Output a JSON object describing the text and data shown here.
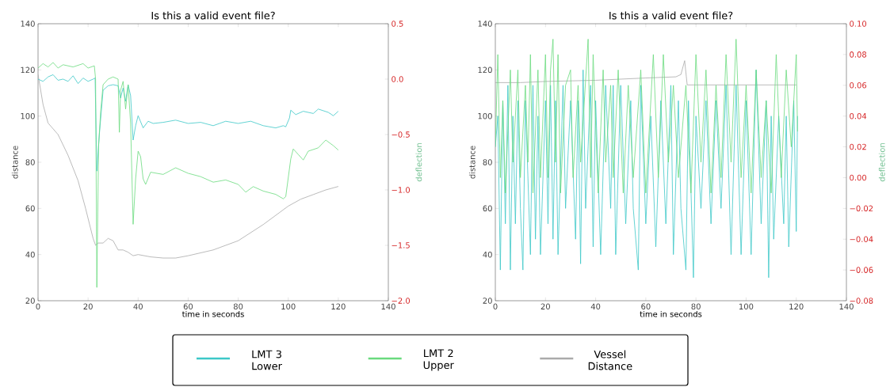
{
  "chart_data": [
    {
      "type": "line",
      "title": "Is this a valid event file?",
      "xlabel": "time in seconds",
      "ylabel": "distance",
      "y2label": "deflection",
      "xlim": [
        0,
        140
      ],
      "xticks": [
        0,
        20,
        40,
        60,
        80,
        100,
        120,
        140
      ],
      "ylim": [
        20,
        140
      ],
      "yticks": [
        20,
        40,
        60,
        80,
        100,
        120,
        140
      ],
      "y2lim": [
        -2.0,
        0.5
      ],
      "y2ticks": [
        {
          "value": -2.0,
          "label": "−2.0"
        },
        {
          "value": -1.5,
          "label": "−1.5"
        },
        {
          "value": -1.0,
          "label": "−1.0"
        },
        {
          "value": -0.5,
          "label": "−0.5"
        },
        {
          "value": 0.0,
          "label": "0.0"
        },
        {
          "value": 0.5,
          "label": "0.5"
        }
      ],
      "legend": "bottom",
      "series": [
        {
          "name": "LMT 3 Lower",
          "color": "#3cc8c8",
          "axis": "y2",
          "x": [
            0,
            2,
            4,
            6,
            8,
            10,
            12,
            14,
            16,
            18,
            20,
            22,
            22.8,
            23.5,
            24.5,
            26,
            28,
            30,
            32,
            33,
            34,
            35,
            36,
            37,
            38,
            39,
            40,
            42,
            44,
            46,
            50,
            55,
            60,
            65,
            70,
            75,
            80,
            85,
            90,
            95,
            98,
            99,
            100.5,
            101,
            103,
            106,
            110,
            112,
            116,
            118,
            120
          ],
          "values": [
            0.0,
            -0.02,
            0.02,
            0.04,
            -0.01,
            0.0,
            -0.02,
            0.03,
            -0.04,
            0.01,
            -0.02,
            0.0,
            0.01,
            -0.83,
            -0.5,
            -0.1,
            -0.06,
            -0.05,
            -0.06,
            -0.17,
            -0.08,
            -0.2,
            -0.05,
            -0.15,
            -0.55,
            -0.42,
            -0.33,
            -0.44,
            -0.38,
            -0.4,
            -0.39,
            -0.37,
            -0.4,
            -0.39,
            -0.42,
            -0.38,
            -0.4,
            -0.38,
            -0.42,
            -0.44,
            -0.42,
            -0.43,
            -0.35,
            -0.28,
            -0.32,
            -0.29,
            -0.31,
            -0.27,
            -0.3,
            -0.33,
            -0.29
          ]
        },
        {
          "name": "LMT 2 Upper",
          "color": "#6ada7e",
          "axis": "y2",
          "x": [
            0,
            2,
            4,
            6,
            8,
            10,
            14,
            18,
            20,
            22.5,
            23,
            23.5,
            24.2,
            25,
            26,
            28,
            30,
            32,
            32.5,
            33,
            34,
            35,
            36,
            37,
            38,
            39,
            40,
            41,
            42,
            43,
            45,
            50,
            55,
            60,
            65,
            70,
            75,
            80,
            83,
            86,
            90,
            95,
            98,
            99,
            101,
            102,
            104,
            106,
            108,
            112,
            115,
            118,
            120
          ],
          "values": [
            0.1,
            0.14,
            0.11,
            0.15,
            0.1,
            0.13,
            0.11,
            0.14,
            0.1,
            0.12,
            0.0,
            -1.88,
            -0.6,
            -0.3,
            -0.05,
            0.0,
            0.02,
            0.0,
            -0.48,
            -0.1,
            -0.02,
            -0.27,
            -0.05,
            -0.4,
            -1.31,
            -0.9,
            -0.65,
            -0.7,
            -0.9,
            -0.95,
            -0.84,
            -0.86,
            -0.8,
            -0.85,
            -0.88,
            -0.93,
            -0.91,
            -0.95,
            -1.02,
            -0.97,
            -1.01,
            -1.04,
            -1.08,
            -1.06,
            -0.72,
            -0.63,
            -0.68,
            -0.73,
            -0.65,
            -0.62,
            -0.55,
            -0.6,
            -0.64
          ]
        },
        {
          "name": "Vessel Distance",
          "color": "#aaaaaa",
          "x": [
            0,
            2,
            4,
            8,
            12,
            16,
            19,
            22,
            23,
            24,
            26,
            28,
            30,
            32,
            34,
            36,
            38,
            40,
            45,
            50,
            55,
            60,
            70,
            80,
            90,
            95,
            100,
            105,
            110,
            115,
            120
          ],
          "values": [
            118,
            105,
            97,
            92,
            83,
            72,
            60,
            47,
            44,
            45,
            45,
            47,
            46,
            42,
            42,
            41,
            39.5,
            40,
            39,
            38.5,
            38.5,
            39.5,
            42,
            46,
            53,
            57,
            61,
            64,
            66,
            68,
            69.5
          ]
        }
      ]
    },
    {
      "type": "line",
      "title": "Is this a valid event file?",
      "xlabel": "time in seconds",
      "ylabel": "distance",
      "y2label": "deflection",
      "xlim": [
        0,
        140
      ],
      "xticks": [
        0,
        20,
        40,
        60,
        80,
        100,
        120,
        140
      ],
      "ylim": [
        20,
        140
      ],
      "yticks": [
        20,
        40,
        60,
        80,
        100,
        120,
        140
      ],
      "y2lim": [
        -0.08,
        0.1
      ],
      "y2ticks": [
        {
          "value": -0.08,
          "label": "−0.08"
        },
        {
          "value": -0.06,
          "label": "−0.06"
        },
        {
          "value": -0.04,
          "label": "−0.04"
        },
        {
          "value": -0.02,
          "label": "−0.02"
        },
        {
          "value": 0.0,
          "label": "0.00"
        },
        {
          "value": 0.02,
          "label": "0.02"
        },
        {
          "value": 0.04,
          "label": "0.04"
        },
        {
          "value": 0.06,
          "label": "0.06"
        },
        {
          "value": 0.08,
          "label": "0.08"
        },
        {
          "value": 0.1,
          "label": "0.10"
        }
      ],
      "legend": "bottom",
      "series": [
        {
          "name": "LMT 3 Lower",
          "color": "#3cc8c8",
          "axis": "y2",
          "x": [
            0,
            1,
            2,
            3,
            4,
            5,
            6,
            7,
            8,
            9,
            10,
            11,
            12,
            14,
            15,
            16,
            17,
            18,
            20,
            21,
            22,
            23,
            24,
            25,
            27,
            28,
            30,
            32,
            33,
            34,
            35,
            36,
            38,
            39,
            40,
            42,
            44,
            46,
            47,
            48,
            50,
            52,
            54,
            55,
            57,
            58,
            60,
            62,
            64,
            66,
            68,
            70,
            71,
            73,
            74,
            76,
            77,
            79,
            80,
            82,
            84,
            86,
            88,
            90,
            92,
            94,
            96,
            98,
            100,
            102,
            104,
            106,
            108,
            109,
            110,
            111,
            113,
            115,
            116,
            117,
            119,
            120,
            120.5
          ],
          "values": [
            0.02,
            0.04,
            -0.06,
            0.05,
            -0.03,
            0.06,
            -0.06,
            0.04,
            -0.03,
            0.05,
            -0.02,
            -0.06,
            0.05,
            -0.05,
            0.06,
            -0.04,
            0.04,
            -0.05,
            0.05,
            -0.03,
            0.06,
            -0.04,
            0.05,
            -0.05,
            0.06,
            -0.02,
            0.05,
            -0.04,
            0.05,
            -0.056,
            0.07,
            -0.02,
            0.06,
            -0.045,
            0.05,
            -0.05,
            0.06,
            -0.02,
            0.06,
            -0.05,
            0.06,
            -0.03,
            0.05,
            -0.02,
            -0.06,
            0.06,
            -0.03,
            0.04,
            -0.045,
            0.05,
            -0.03,
            0.06,
            -0.05,
            0.05,
            -0.02,
            -0.06,
            0.05,
            -0.065,
            0.04,
            -0.02,
            0.05,
            -0.03,
            0.05,
            -0.02,
            0.06,
            -0.05,
            0.06,
            -0.05,
            0.05,
            -0.05,
            0.07,
            -0.03,
            0.05,
            -0.065,
            0.04,
            -0.04,
            0.04,
            -0.03,
            0.04,
            -0.045,
            0.05,
            -0.035,
            0.04
          ]
        },
        {
          "name": "LMT 2 Upper",
          "color": "#6ada7e",
          "axis": "y2",
          "x": [
            0,
            1,
            2,
            3,
            4,
            6,
            7,
            9,
            10,
            12,
            13,
            14,
            15,
            17,
            18,
            20,
            21,
            22,
            23,
            24,
            25,
            26,
            28,
            30,
            31,
            33,
            34,
            37,
            38,
            39,
            41,
            43,
            44,
            46,
            47,
            49,
            51,
            53,
            55,
            58,
            60,
            63,
            65,
            67,
            69,
            71,
            73,
            76,
            78,
            80,
            82,
            84,
            86,
            88,
            90,
            92,
            94,
            96,
            98,
            100,
            102,
            104,
            106,
            108,
            110,
            112,
            114,
            116,
            118,
            120,
            120.5
          ],
          "values": [
            0.02,
            0.08,
            0.0,
            0.05,
            -0.01,
            0.07,
            0.01,
            0.07,
            0.0,
            0.06,
            0.01,
            0.08,
            -0.01,
            0.07,
            0.0,
            0.08,
            0.0,
            0.07,
            0.09,
            0.01,
            0.08,
            -0.01,
            0.06,
            0.07,
            0.0,
            0.06,
            0.01,
            0.09,
            0.0,
            0.08,
            -0.01,
            0.07,
            0.01,
            0.06,
            0.0,
            0.07,
            -0.01,
            0.06,
            0.0,
            0.07,
            -0.01,
            0.08,
            0.0,
            0.08,
            0.01,
            0.06,
            0.0,
            0.06,
            -0.01,
            0.08,
            0.01,
            0.07,
            -0.01,
            0.06,
            0.0,
            0.08,
            0.01,
            0.09,
            0.0,
            0.06,
            -0.01,
            0.07,
            0.0,
            0.05,
            -0.01,
            0.08,
            0.0,
            0.07,
            0.02,
            0.08,
            0.03
          ]
        },
        {
          "name": "Vessel Distance",
          "color": "#aaaaaa",
          "x": [
            0,
            10,
            20,
            40,
            60,
            72,
            74,
            75.5,
            76.5,
            80,
            100,
            120
          ],
          "values": [
            114.5,
            114.5,
            115,
            115.5,
            116.5,
            117,
            118,
            124,
            113.5,
            113.5,
            113.5,
            113.5
          ]
        }
      ]
    }
  ]
}
